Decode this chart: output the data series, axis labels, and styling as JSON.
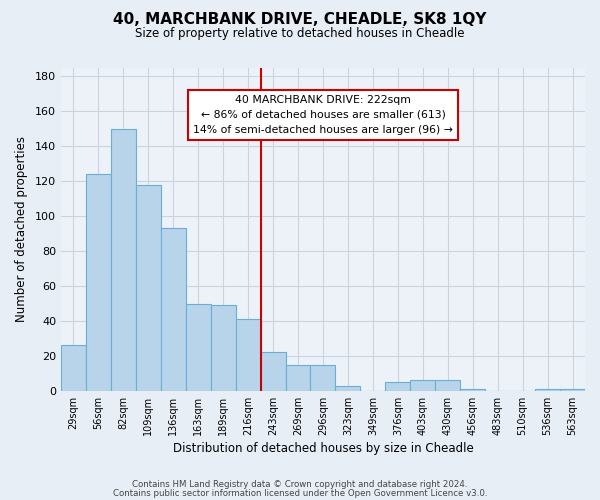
{
  "title": "40, MARCHBANK DRIVE, CHEADLE, SK8 1QY",
  "subtitle": "Size of property relative to detached houses in Cheadle",
  "xlabel": "Distribution of detached houses by size in Cheadle",
  "ylabel": "Number of detached properties",
  "bar_labels": [
    "29sqm",
    "56sqm",
    "82sqm",
    "109sqm",
    "136sqm",
    "163sqm",
    "189sqm",
    "216sqm",
    "243sqm",
    "269sqm",
    "296sqm",
    "323sqm",
    "349sqm",
    "376sqm",
    "403sqm",
    "430sqm",
    "456sqm",
    "483sqm",
    "510sqm",
    "536sqm",
    "563sqm"
  ],
  "bar_values": [
    26,
    124,
    150,
    118,
    93,
    50,
    49,
    41,
    22,
    15,
    15,
    3,
    0,
    5,
    6,
    6,
    1,
    0,
    0,
    1,
    1
  ],
  "bar_color": "#b8d4ea",
  "bar_edge_color": "#6aaed6",
  "vline_x": 7.5,
  "vline_color": "#cc0000",
  "annotation_text": "40 MARCHBANK DRIVE: 222sqm\n← 86% of detached houses are smaller (613)\n14% of semi-detached houses are larger (96) →",
  "annotation_box_color": "#ffffff",
  "annotation_box_edge": "#cc0000",
  "ylim": [
    0,
    185
  ],
  "yticks": [
    0,
    20,
    40,
    60,
    80,
    100,
    120,
    140,
    160,
    180
  ],
  "footer_line1": "Contains HM Land Registry data © Crown copyright and database right 2024.",
  "footer_line2": "Contains public sector information licensed under the Open Government Licence v3.0.",
  "background_color": "#e8eef6",
  "plot_bg_color": "#edf2f8"
}
